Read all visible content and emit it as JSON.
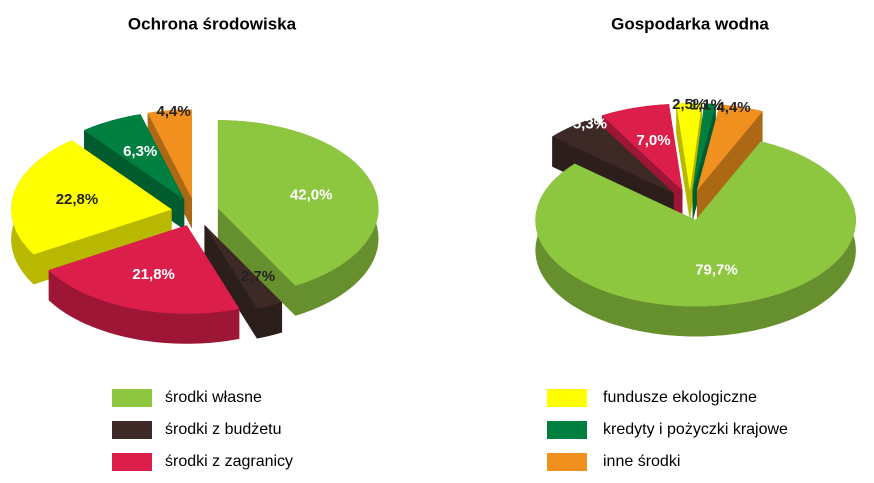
{
  "chart_data": [
    {
      "type": "pie",
      "title": "Ochrona środowiska",
      "values": [
        42.0,
        2.7,
        21.8,
        22.8,
        6.3,
        4.4
      ],
      "value_labels": [
        "42,0%",
        "2,7%",
        "21,8%",
        "22,8%",
        "6,3%",
        "4,4%"
      ]
    },
    {
      "type": "pie",
      "title": "Gospodarka wodna",
      "values": [
        79.7,
        5.3,
        7.0,
        2.5,
        1.1,
        4.4
      ],
      "value_labels": [
        "79,7%",
        "5,3%",
        "7,0%",
        "2,5%",
        "1,1%",
        "4,4%"
      ]
    }
  ],
  "legend": {
    "labels": [
      "środki własne",
      "środki z budżetu",
      "środki z zagranicy",
      "fundusze ekologiczne",
      "kredyty i pożyczki krajowe",
      "inne środki"
    ],
    "colors": [
      "#8dc63f",
      "#3d2a26",
      "#dc1e4b",
      "#ffff00",
      "#008040",
      "#f0901e"
    ]
  }
}
